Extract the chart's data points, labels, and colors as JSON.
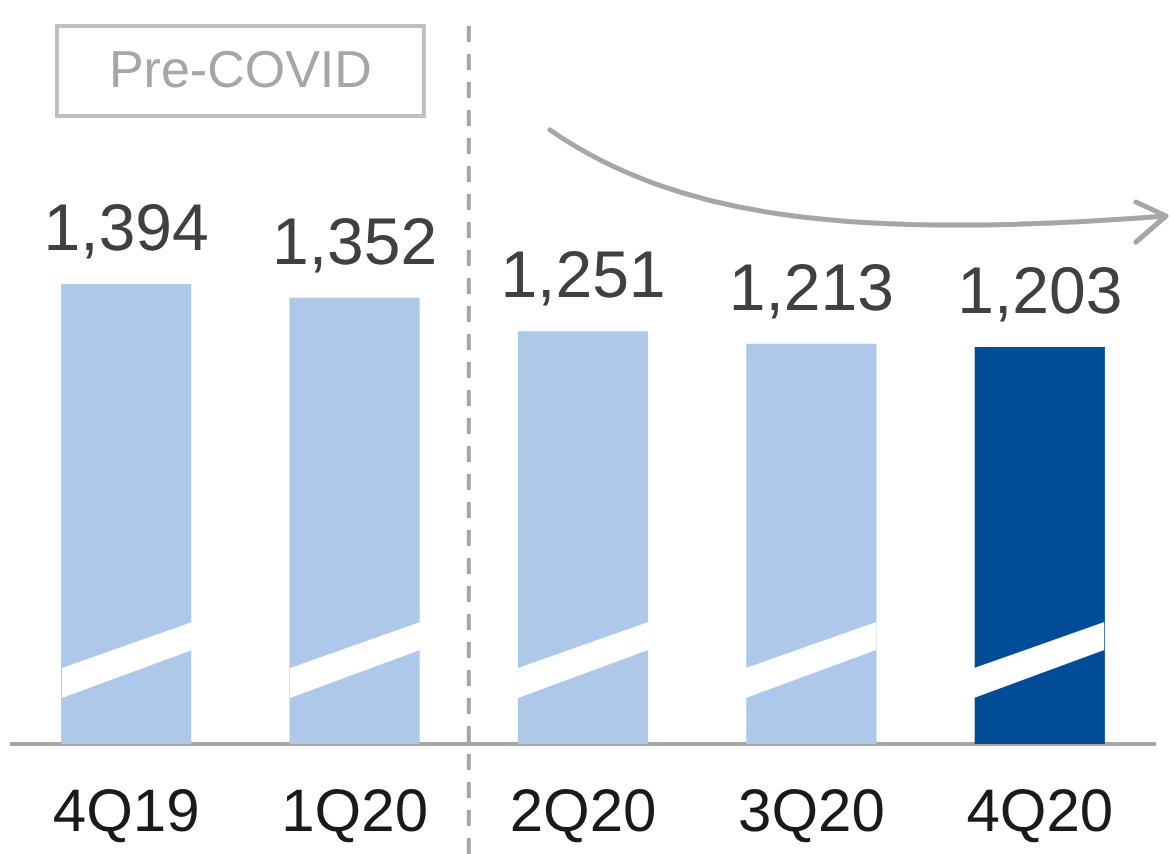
{
  "chart_data": {
    "type": "bar",
    "categories": [
      "4Q19",
      "1Q20",
      "2Q20",
      "3Q20",
      "4Q20"
    ],
    "values": [
      1394,
      1352,
      1251,
      1213,
      1203
    ],
    "colors": [
      "#adc8e8",
      "#adc8e8",
      "#adc8e8",
      "#adc8e8",
      "#004c97"
    ],
    "value_labels": [
      "1,394",
      "1,352",
      "1,251",
      "1,213",
      "1,203"
    ],
    "tick_labels": "x",
    "annotations": [
      "Pre-COVID"
    ]
  }
}
